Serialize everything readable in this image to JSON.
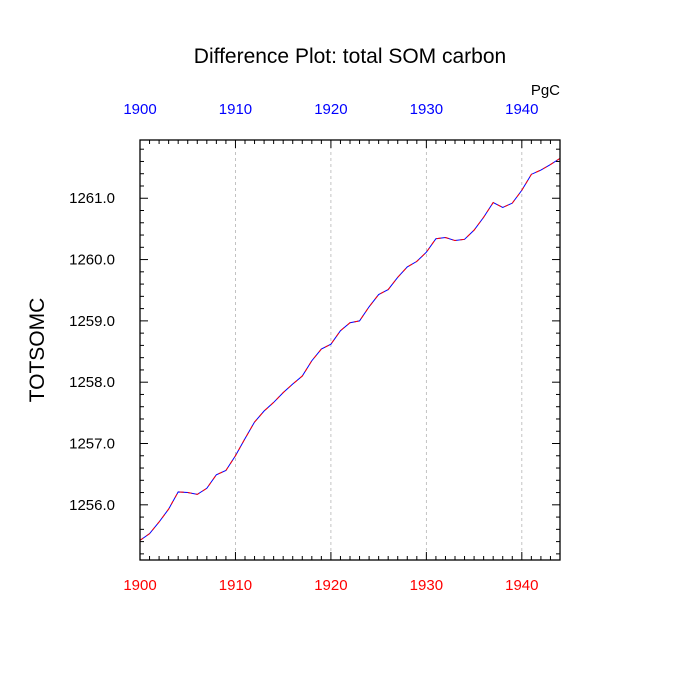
{
  "chart_data": {
    "type": "line",
    "title": "Difference Plot: total SOM carbon",
    "ylabel": "TOTSOMC",
    "units_label": "PgC",
    "xlim": [
      1900,
      1944
    ],
    "ylim": [
      1255.1,
      1261.95
    ],
    "x_ticks": [
      1900,
      1910,
      1920,
      1930,
      1940
    ],
    "y_ticks": [
      1256.0,
      1257.0,
      1258.0,
      1259.0,
      1260.0,
      1261.0
    ],
    "grid": "vertical dashed at x ticks",
    "bottom_axis_color": "#ff0000",
    "top_axis_color": "#0000ff",
    "series": [
      {
        "line_color": "#0000ff",
        "dash_color": "#ff0000",
        "x": [
          1900,
          1901,
          1902,
          1903,
          1904,
          1905,
          1906,
          1907,
          1908,
          1909,
          1910,
          1911,
          1912,
          1913,
          1914,
          1915,
          1916,
          1917,
          1918,
          1919,
          1920,
          1921,
          1922,
          1923,
          1924,
          1925,
          1926,
          1927,
          1928,
          1929,
          1930,
          1931,
          1932,
          1933,
          1934,
          1935,
          1936,
          1937,
          1938,
          1939,
          1940,
          1941,
          1942,
          1943,
          1944
        ],
        "values": [
          1255.42,
          1255.53,
          1255.72,
          1255.93,
          1256.21,
          1256.2,
          1256.17,
          1256.27,
          1256.49,
          1256.56,
          1256.8,
          1257.08,
          1257.35,
          1257.53,
          1257.67,
          1257.83,
          1257.97,
          1258.1,
          1258.35,
          1258.54,
          1258.62,
          1258.84,
          1258.97,
          1259.0,
          1259.23,
          1259.43,
          1259.51,
          1259.71,
          1259.88,
          1259.97,
          1260.12,
          1260.34,
          1260.36,
          1260.31,
          1260.33,
          1260.48,
          1260.69,
          1260.93,
          1260.85,
          1260.92,
          1261.13,
          1261.39,
          1261.46,
          1261.55,
          1261.65
        ]
      }
    ]
  }
}
